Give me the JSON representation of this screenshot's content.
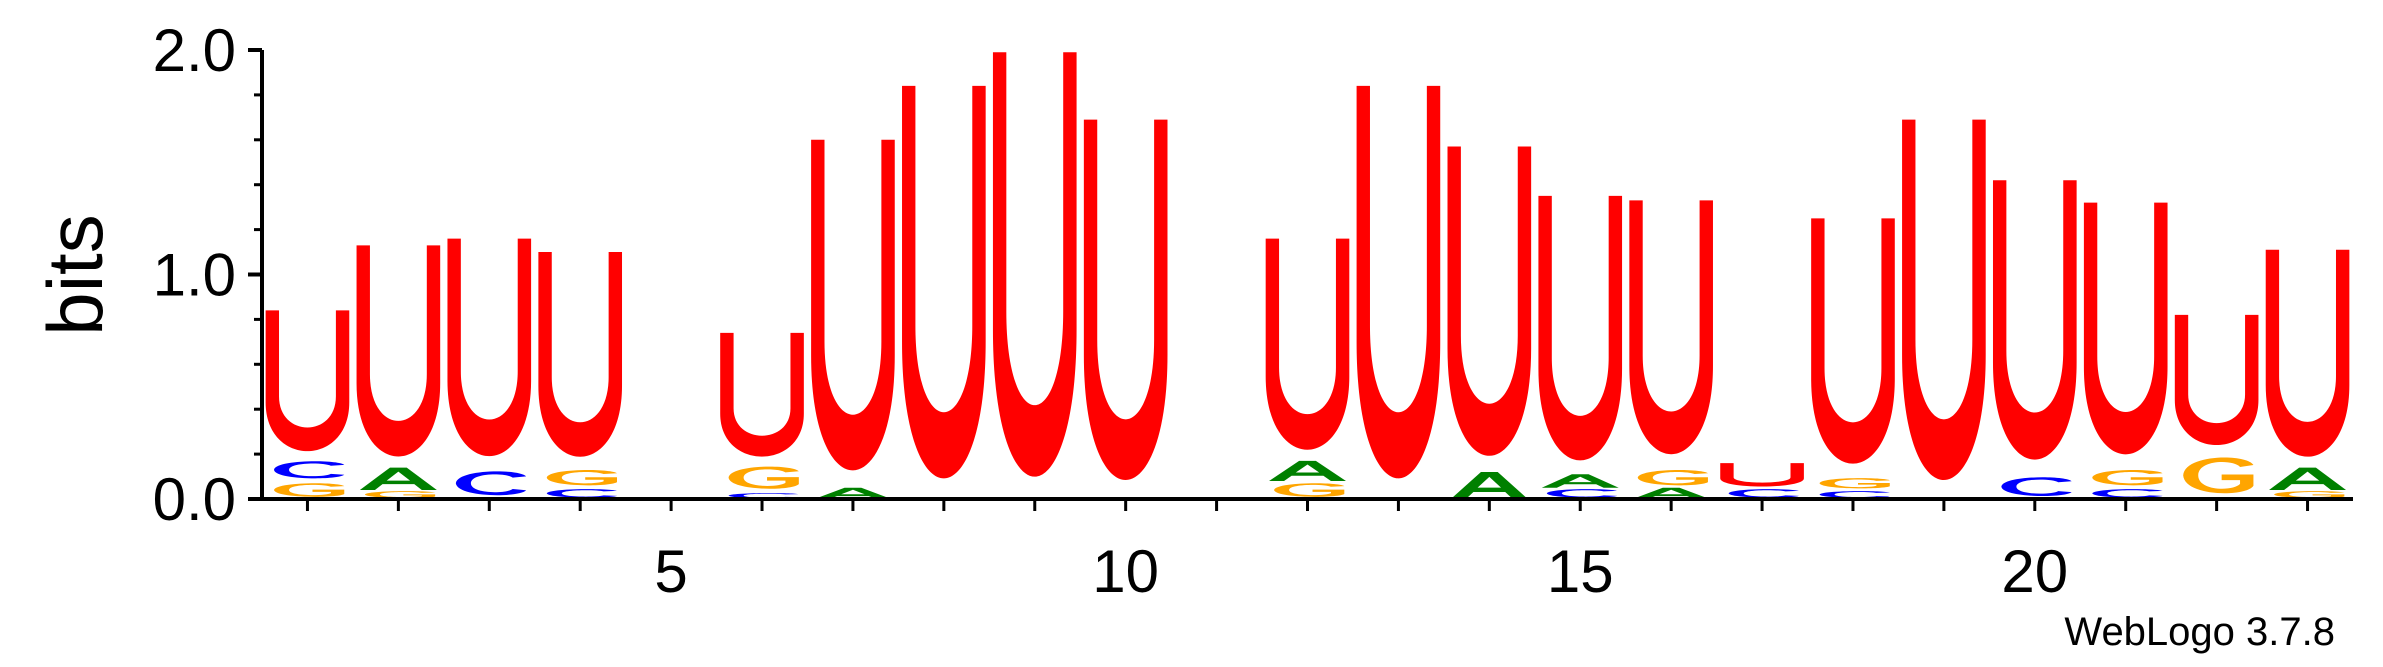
{
  "chart_data": {
    "type": "sequence_logo",
    "ylabel": "bits",
    "ylim": [
      0,
      2.0
    ],
    "y_ticks": [
      "0.0",
      "1.0",
      "2.0"
    ],
    "x_ticks": [
      "5",
      "10",
      "15",
      "20"
    ],
    "positions": 23,
    "colors": {
      "U": "#ff0000",
      "G": "#ffa500",
      "C": "#0000ff",
      "A": "#008000"
    },
    "footer": "WebLogo 3.7.8",
    "logo": [
      {
        "pos": 1,
        "stack": [
          [
            "G",
            0.08
          ],
          [
            "C",
            0.1
          ],
          [
            "U",
            0.66
          ]
        ]
      },
      {
        "pos": 2,
        "stack": [
          [
            "G",
            0.04
          ],
          [
            "A",
            0.1
          ],
          [
            "U",
            0.99
          ]
        ]
      },
      {
        "pos": 3,
        "stack": [
          [
            "C",
            0.14
          ],
          [
            "U",
            1.02
          ]
        ]
      },
      {
        "pos": 4,
        "stack": [
          [
            "C",
            0.05
          ],
          [
            "G",
            0.09
          ],
          [
            "U",
            0.96
          ]
        ]
      },
      {
        "pos": 5,
        "stack": []
      },
      {
        "pos": 6,
        "stack": [
          [
            "C",
            0.03
          ],
          [
            "G",
            0.13
          ],
          [
            "U",
            0.58
          ]
        ]
      },
      {
        "pos": 7,
        "stack": [
          [
            "A",
            0.05
          ],
          [
            "U",
            1.55
          ]
        ]
      },
      {
        "pos": 8,
        "stack": [
          [
            "U",
            1.84
          ]
        ]
      },
      {
        "pos": 9,
        "stack": [
          [
            "U",
            1.99
          ]
        ]
      },
      {
        "pos": 10,
        "stack": [
          [
            "U",
            1.69
          ]
        ]
      },
      {
        "pos": 11,
        "stack": []
      },
      {
        "pos": 12,
        "stack": [
          [
            "G",
            0.08
          ],
          [
            "A",
            0.09
          ],
          [
            "U",
            0.99
          ]
        ]
      },
      {
        "pos": 13,
        "stack": [
          [
            "U",
            1.84
          ]
        ]
      },
      {
        "pos": 14,
        "stack": [
          [
            "A",
            0.12
          ],
          [
            "U",
            1.45
          ]
        ]
      },
      {
        "pos": 15,
        "stack": [
          [
            "C",
            0.05
          ],
          [
            "A",
            0.06
          ],
          [
            "U",
            1.24
          ]
        ]
      },
      {
        "pos": 16,
        "stack": [
          [
            "A",
            0.05
          ],
          [
            "G",
            0.09
          ],
          [
            "U",
            1.19
          ]
        ]
      },
      {
        "pos": 17,
        "stack": [
          [
            "C",
            0.05
          ],
          [
            "U",
            0.11
          ]
        ]
      },
      {
        "pos": 18,
        "stack": [
          [
            "C",
            0.04
          ],
          [
            "G",
            0.06
          ],
          [
            "U",
            1.15
          ]
        ]
      },
      {
        "pos": 19,
        "stack": [
          [
            "U",
            1.69
          ]
        ]
      },
      {
        "pos": 20,
        "stack": [
          [
            "C",
            0.11
          ],
          [
            "U",
            1.31
          ]
        ]
      },
      {
        "pos": 21,
        "stack": [
          [
            "C",
            0.05
          ],
          [
            "G",
            0.09
          ],
          [
            "U",
            1.18
          ]
        ]
      },
      {
        "pos": 22,
        "stack": [
          [
            "G",
            0.21
          ],
          [
            "U",
            0.61
          ]
        ]
      },
      {
        "pos": 23,
        "stack": [
          [
            "G",
            0.04
          ],
          [
            "A",
            0.1
          ],
          [
            "U",
            0.97
          ]
        ]
      }
    ]
  }
}
